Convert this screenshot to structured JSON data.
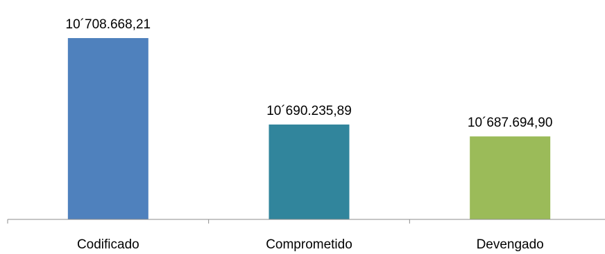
{
  "chart_data": {
    "type": "bar",
    "categories": [
      "Codificado",
      "Comprometido",
      "Devengado"
    ],
    "values": [
      10708668.21,
      10690235.89,
      10687694.9
    ],
    "data_labels": [
      "10´708.668,21",
      "10´690.235,89",
      "10´687.694,90"
    ],
    "colors": [
      "#4F81BD",
      "#31859C",
      "#9BBB59"
    ],
    "title": "",
    "xlabel": "",
    "ylabel": "",
    "ylim": [
      10670000,
      10710000
    ],
    "grid": false,
    "legend": "none"
  }
}
